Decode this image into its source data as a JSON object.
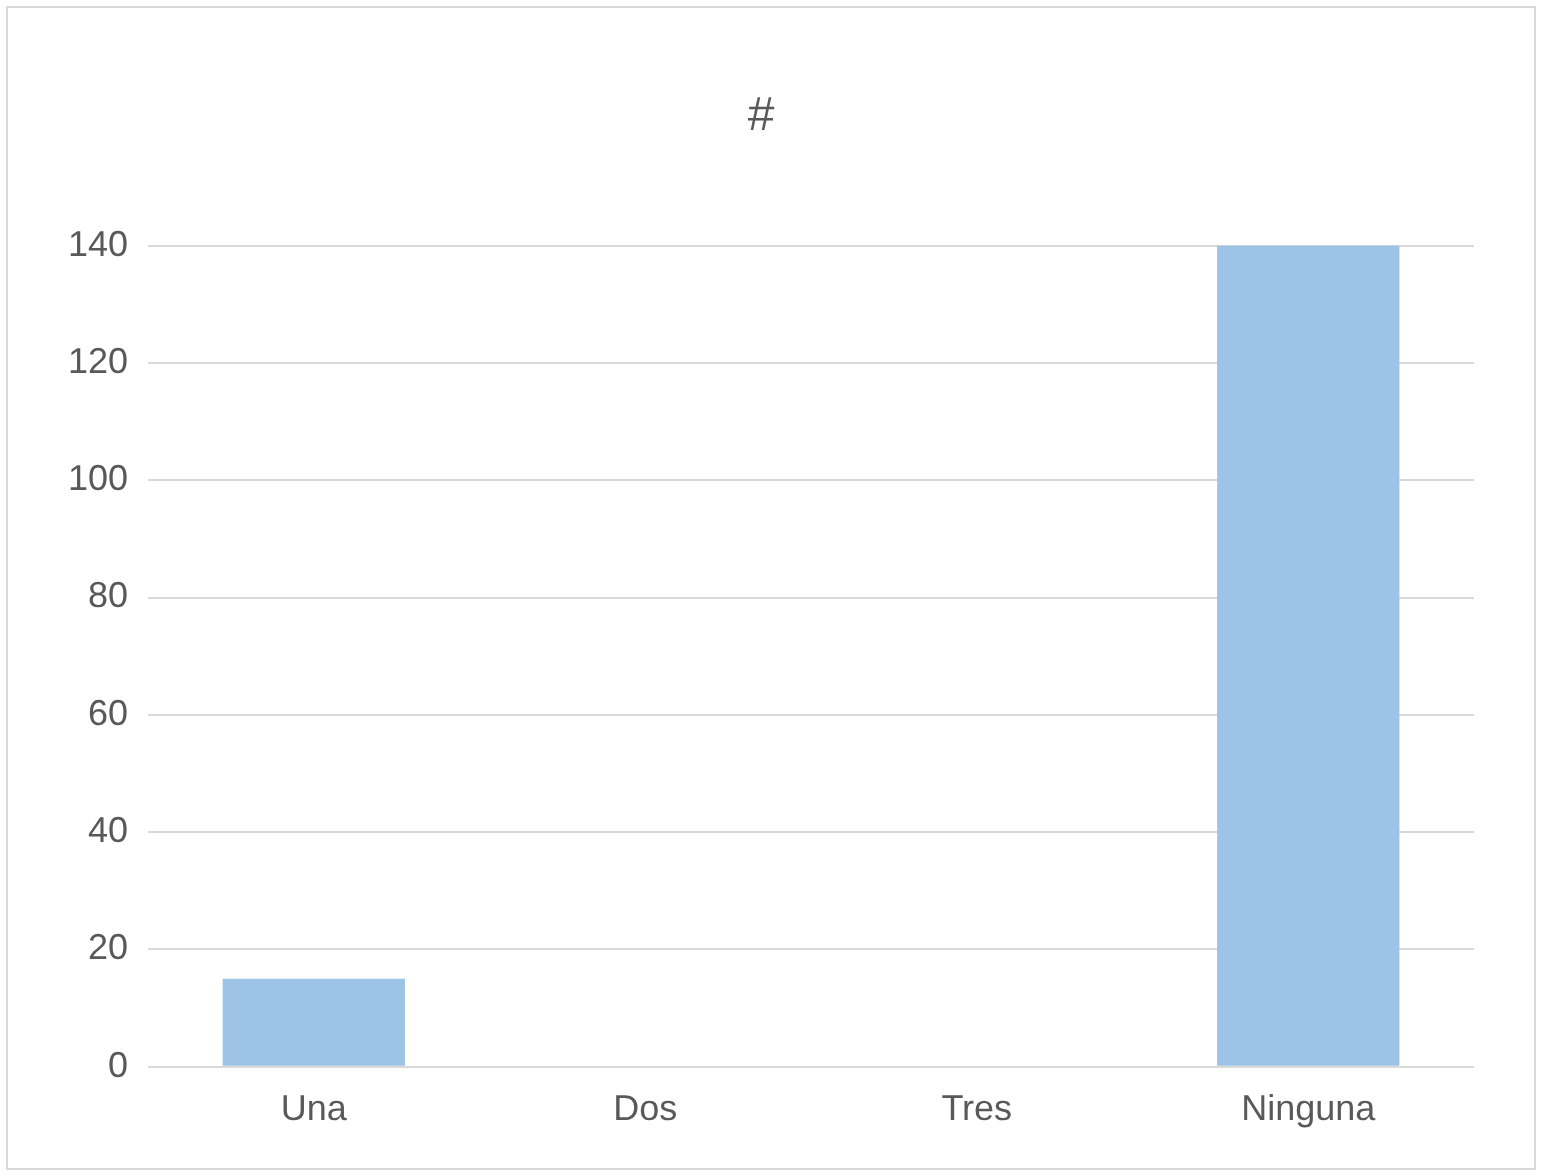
{
  "chart_data": {
    "type": "bar",
    "title": "#",
    "categories": [
      "Una",
      "Dos",
      "Tres",
      "Ninguna"
    ],
    "values": [
      15,
      0,
      0,
      140
    ],
    "color": "#9dc3e6",
    "ylim": [
      0,
      140
    ],
    "yticks": [
      0,
      20,
      40,
      60,
      80,
      100,
      120,
      140
    ],
    "grid": "y",
    "legend": false
  }
}
